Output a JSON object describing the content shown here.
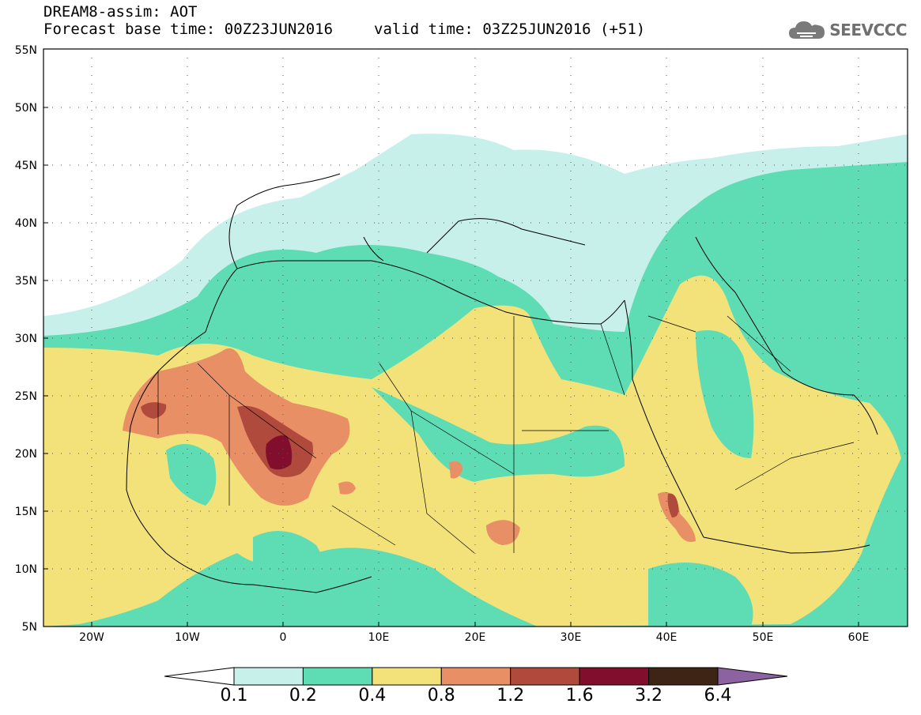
{
  "title": {
    "line1": "DREAM8-assim: AOT",
    "base_time": "Forecast base time: 00Z23JUN2016",
    "valid_time": "valid time: 03Z25JUN2016 (+51)"
  },
  "logo": {
    "text": "SEEVCCC",
    "icon": "cloud-icon"
  },
  "axes": {
    "lat_labels": [
      "55N",
      "50N",
      "45N",
      "40N",
      "35N",
      "30N",
      "25N",
      "20N",
      "15N",
      "10N",
      "5N"
    ],
    "lon_labels": [
      "20W",
      "10W",
      "0",
      "10E",
      "20E",
      "30E",
      "40E",
      "50E",
      "60E"
    ]
  },
  "colorbar": {
    "colors": [
      "#ffffff",
      "#c8f0ea",
      "#5edcb4",
      "#f3e27a",
      "#e88f66",
      "#b04a3c",
      "#820e2e",
      "#3d2414",
      "#8c62a0"
    ],
    "labels": [
      "0.1",
      "0.2",
      "0.4",
      "0.8",
      "1.2",
      "1.6",
      "3.2",
      "6.4"
    ]
  },
  "colors": {
    "aot_0_1": "#c8f0ea",
    "aot_0_2": "#5edcb4",
    "aot_0_4": "#f3e27a",
    "aot_0_8": "#e88f66",
    "aot_1_2": "#b04a3c",
    "aot_1_6": "#820e2e"
  }
}
